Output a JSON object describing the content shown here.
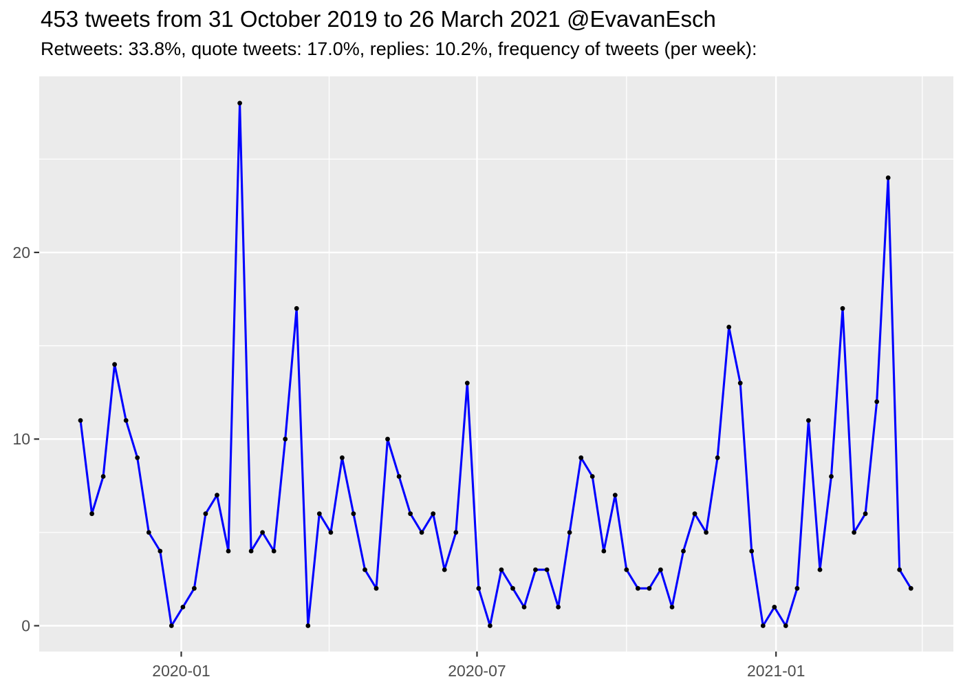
{
  "header": {
    "title": "453 tweets from 31 October 2019 to 26 March 2021 @EvavanEsch",
    "subtitle": "Retweets: 33.8%, quote tweets: 17.0%, replies: 10.2%, frequency of tweets (per week):"
  },
  "chart_data": {
    "type": "line",
    "title": "453 tweets from 31 October 2019 to 26 March 2021 @EvavanEsch",
    "subtitle": "Retweets: 33.8%, quote tweets: 17.0%, replies: 10.2%, frequency of tweets (per week):",
    "xlabel": "",
    "ylabel": "",
    "total_tweets": 453,
    "legend_position": "none",
    "grid": "on",
    "x": [
      "2019-10-31",
      "2019-11-07",
      "2019-11-14",
      "2019-11-21",
      "2019-11-28",
      "2019-12-05",
      "2019-12-12",
      "2019-12-19",
      "2019-12-26",
      "2020-01-02",
      "2020-01-09",
      "2020-01-16",
      "2020-01-23",
      "2020-01-30",
      "2020-02-06",
      "2020-02-13",
      "2020-02-20",
      "2020-02-27",
      "2020-03-05",
      "2020-03-12",
      "2020-03-19",
      "2020-03-26",
      "2020-04-02",
      "2020-04-09",
      "2020-04-16",
      "2020-04-23",
      "2020-04-30",
      "2020-05-07",
      "2020-05-14",
      "2020-05-21",
      "2020-05-28",
      "2020-06-04",
      "2020-06-11",
      "2020-06-18",
      "2020-06-25",
      "2020-07-02",
      "2020-07-09",
      "2020-07-16",
      "2020-07-23",
      "2020-07-30",
      "2020-08-06",
      "2020-08-13",
      "2020-08-20",
      "2020-08-27",
      "2020-09-03",
      "2020-09-10",
      "2020-09-17",
      "2020-09-24",
      "2020-10-01",
      "2020-10-08",
      "2020-10-15",
      "2020-10-22",
      "2020-10-29",
      "2020-11-05",
      "2020-11-12",
      "2020-11-19",
      "2020-11-26",
      "2020-12-03",
      "2020-12-10",
      "2020-12-17",
      "2020-12-24",
      "2020-12-31",
      "2021-01-07",
      "2021-01-14",
      "2021-01-21",
      "2021-01-28",
      "2021-02-04",
      "2021-02-11",
      "2021-02-18",
      "2021-02-25",
      "2021-03-04",
      "2021-03-11",
      "2021-03-18",
      "2021-03-25"
    ],
    "values": [
      11,
      6,
      8,
      14,
      11,
      9,
      5,
      4,
      0,
      1,
      2,
      6,
      7,
      4,
      28,
      4,
      5,
      4,
      10,
      17,
      0,
      6,
      5,
      9,
      6,
      3,
      2,
      10,
      8,
      6,
      5,
      6,
      3,
      5,
      13,
      2,
      0,
      3,
      2,
      1,
      3,
      3,
      1,
      5,
      9,
      8,
      4,
      7,
      3,
      2,
      2,
      3,
      1,
      4,
      6,
      5,
      9,
      16,
      13,
      4,
      0,
      1,
      0,
      2,
      11,
      3,
      8,
      17,
      5,
      6,
      12,
      24,
      3,
      2
    ],
    "x_axis": {
      "tick_labels": [
        "2020-01",
        "2020-07",
        "2021-01"
      ],
      "tick_dates": [
        "2020-01-01",
        "2020-07-01",
        "2021-01-01"
      ],
      "minor_gridline_dates": [
        "2020-04-01",
        "2020-10-01",
        "2021-04-01"
      ]
    },
    "y_axis": {
      "tick_labels": [
        "0",
        "10",
        "20"
      ],
      "tick_values": [
        0,
        10,
        20
      ],
      "minor_gridline_values": [
        5,
        15,
        25
      ]
    },
    "ylim_shown": [
      -1.4,
      29.4
    ],
    "colors": {
      "line": "#0000FF",
      "point": "#000000",
      "panel_background": "#EBEBEB",
      "gridline": "#FFFFFF",
      "axis_text": "#4D4D4D",
      "tick_mark": "#333333",
      "title_text": "#000000"
    }
  }
}
